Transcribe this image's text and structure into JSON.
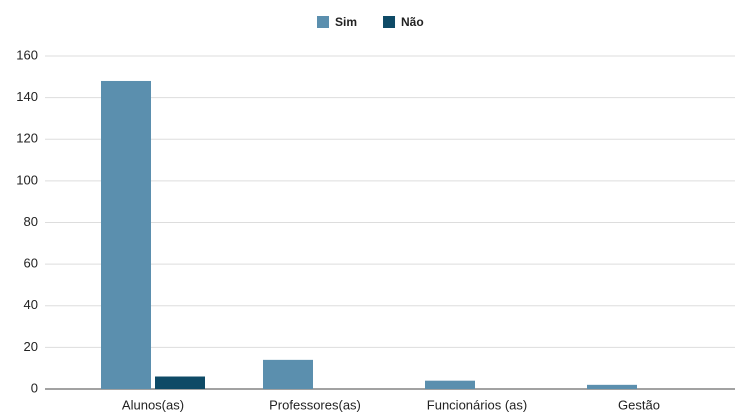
{
  "chart_data": {
    "type": "bar",
    "categories": [
      "Alunos(as)",
      "Professores(as)",
      "Funcionários (as)",
      "Gestão"
    ],
    "series": [
      {
        "name": "Sim",
        "color": "#5b8fae",
        "values": [
          148,
          14,
          4,
          2
        ]
      },
      {
        "name": "Não",
        "color": "#0e4a66",
        "values": [
          6,
          0,
          0,
          0
        ]
      }
    ],
    "ylim": [
      0,
      160
    ],
    "yticks": [
      0,
      20,
      40,
      60,
      80,
      100,
      120,
      140,
      160
    ],
    "grid": true,
    "legend": "top"
  }
}
